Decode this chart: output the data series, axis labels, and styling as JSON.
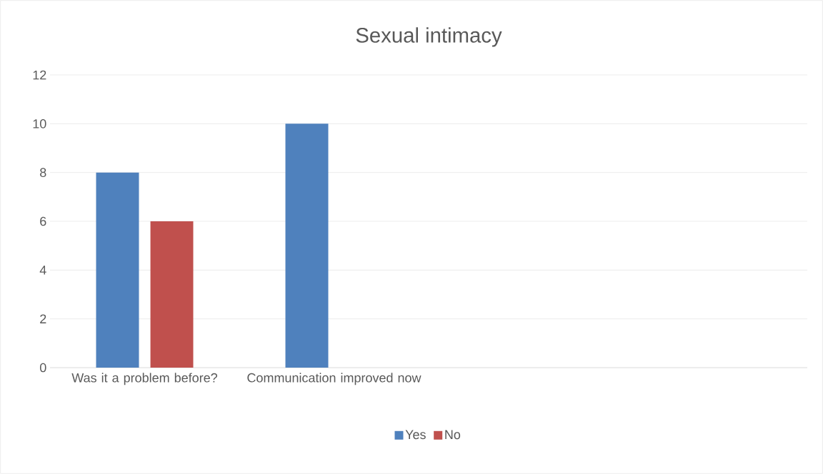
{
  "chart_data": {
    "type": "bar",
    "title": "Sexual intimacy",
    "categories": [
      "Was it a problem before?",
      "Communication improved now",
      null,
      null
    ],
    "series": [
      {
        "name": "Yes",
        "color": "#4f81bd",
        "values": [
          8,
          10,
          null,
          null
        ]
      },
      {
        "name": "No",
        "color": "#c0504d",
        "values": [
          6,
          null,
          null,
          null
        ]
      }
    ],
    "ylim": [
      0,
      12
    ],
    "yticks": [
      0,
      2,
      4,
      6,
      8,
      10,
      12
    ],
    "grid": "y",
    "legend": "bottom"
  }
}
